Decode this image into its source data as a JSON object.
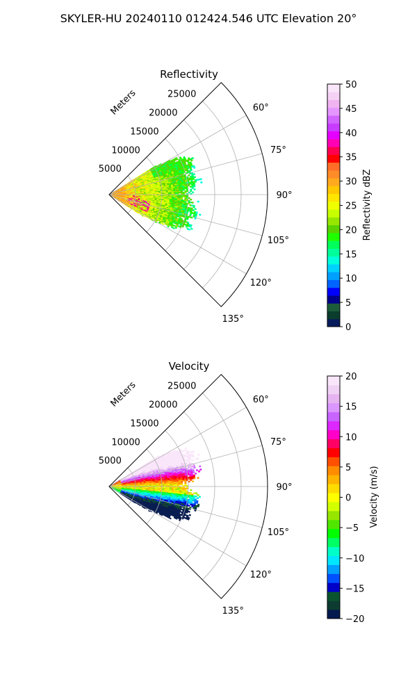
{
  "figure_title": "SKYLER-HU  20240110  012424.546 UTC Elevation 20°",
  "panels": [
    {
      "title": "Reflectivity",
      "range_label": "Meters",
      "range_ticks": [
        "5000",
        "10000",
        "15000",
        "20000",
        "25000"
      ],
      "azimuth_ticks": [
        "60°",
        "75°",
        "90°",
        "105°",
        "120°",
        "135°"
      ],
      "colorbar": {
        "label": "Reflectivity dBZ",
        "ticks": [
          "0",
          "5",
          "10",
          "15",
          "20",
          "25",
          "30",
          "35",
          "40",
          "45",
          "50"
        ]
      }
    },
    {
      "title": "Velocity",
      "range_label": "Meters",
      "range_ticks": [
        "5000",
        "10000",
        "15000",
        "20000",
        "25000"
      ],
      "azimuth_ticks": [
        "60°",
        "75°",
        "90°",
        "105°",
        "120°",
        "135°"
      ],
      "colorbar": {
        "label": "Velocity (m/s)",
        "ticks": [
          "−20",
          "−15",
          "−10",
          "−5",
          "0",
          "5",
          "10",
          "15",
          "20"
        ]
      }
    }
  ],
  "chart_data": [
    {
      "type": "heatmap",
      "projection": "polar-sector",
      "title": "Reflectivity",
      "theta_range_deg": [
        45,
        135
      ],
      "r_range": [
        0,
        30000
      ],
      "r_ticks": [
        5000,
        10000,
        15000,
        20000,
        25000
      ],
      "theta_ticks_deg": [
        60,
        75,
        90,
        105,
        120,
        135
      ],
      "r_label": "Meters",
      "grid": true,
      "colorbar": {
        "label": "Reflectivity dBZ",
        "min": 0,
        "max": 50,
        "ticks": [
          0,
          5,
          10,
          15,
          20,
          25,
          30,
          35,
          40,
          45,
          50
        ]
      },
      "echo_extent": {
        "theta_deg": [
          58,
          123
        ],
        "r_max": 18000
      },
      "echo_profile": [
        {
          "theta": 58,
          "r_max": 10000
        },
        {
          "theta": 62,
          "r_max": 15000
        },
        {
          "theta": 67,
          "r_max": 17000
        },
        {
          "theta": 72,
          "r_max": 16500
        },
        {
          "theta": 76,
          "r_max": 16000
        },
        {
          "theta": 80,
          "r_max": 17000
        },
        {
          "theta": 85,
          "r_max": 16000
        },
        {
          "theta": 89,
          "r_max": 14500
        },
        {
          "theta": 93,
          "r_max": 15500
        },
        {
          "theta": 98,
          "r_max": 16500
        },
        {
          "theta": 104,
          "r_max": 17000
        },
        {
          "theta": 108,
          "r_max": 15000
        },
        {
          "theta": 112,
          "r_max": 16500
        },
        {
          "theta": 118,
          "r_max": 12500
        },
        {
          "theta": 123,
          "r_max": 6000
        }
      ]
    },
    {
      "type": "heatmap",
      "projection": "polar-sector",
      "title": "Velocity",
      "theta_range_deg": [
        45,
        135
      ],
      "r_range": [
        0,
        30000
      ],
      "r_ticks": [
        5000,
        10000,
        15000,
        20000,
        25000
      ],
      "theta_ticks_deg": [
        60,
        75,
        90,
        105,
        120,
        135
      ],
      "r_label": "Meters",
      "grid": true,
      "colorbar": {
        "label": "Velocity (m/s)",
        "min": -20,
        "max": 20,
        "ticks": [
          -20,
          -15,
          -10,
          -5,
          0,
          5,
          10,
          15,
          20
        ]
      },
      "echo_extent": {
        "theta_deg": [
          58,
          123
        ],
        "r_max": 18000
      },
      "echo_profile": [
        {
          "theta": 58,
          "r_max": 10000
        },
        {
          "theta": 62,
          "r_max": 15000
        },
        {
          "theta": 67,
          "r_max": 17000
        },
        {
          "theta": 72,
          "r_max": 16500
        },
        {
          "theta": 76,
          "r_max": 16000
        },
        {
          "theta": 80,
          "r_max": 17000
        },
        {
          "theta": 85,
          "r_max": 16000
        },
        {
          "theta": 89,
          "r_max": 14500
        },
        {
          "theta": 93,
          "r_max": 15500
        },
        {
          "theta": 98,
          "r_max": 16500
        },
        {
          "theta": 104,
          "r_max": 17000
        },
        {
          "theta": 108,
          "r_max": 15000
        },
        {
          "theta": 112,
          "r_max": 16500
        },
        {
          "theta": 118,
          "r_max": 12500
        },
        {
          "theta": 123,
          "r_max": 6000
        }
      ]
    }
  ],
  "colormaps": {
    "reflectivity": [
      "#081c5c",
      "#0b3d2e",
      "#1d5c3b",
      "#00008b",
      "#0000ff",
      "#0064ff",
      "#00a0ff",
      "#00d2ff",
      "#00ffdc",
      "#00ff9b",
      "#00ff5a",
      "#1eff00",
      "#5ad200",
      "#96e600",
      "#c8ff00",
      "#f0ff00",
      "#ffe600",
      "#ffc800",
      "#ffaa1e",
      "#ff8c28",
      "#ff6e28",
      "#ff0000",
      "#ff0050",
      "#ff00b4",
      "#e600ff",
      "#c83cff",
      "#d264ff",
      "#e696ff",
      "#f0b4f0",
      "#f5d2f5",
      "#fae6fa"
    ],
    "velocity": [
      "#051a4f",
      "#0d3b32",
      "#0a5530",
      "#0000c8",
      "#0050ff",
      "#00a0ff",
      "#00e6ff",
      "#00ffc8",
      "#00ff64",
      "#00ff00",
      "#50e600",
      "#96e600",
      "#d2ff00",
      "#ffff00",
      "#ffdc00",
      "#ffb400",
      "#ff8c00",
      "#ff5000",
      "#ff0000",
      "#ff0064",
      "#ff00c8",
      "#dc28ff",
      "#c864ff",
      "#dc96ff",
      "#e6b4f0",
      "#f0d2f5",
      "#fae6fa"
    ]
  }
}
